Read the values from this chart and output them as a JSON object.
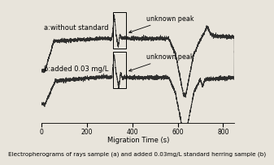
{
  "title": "",
  "xlabel": "Migration Time (s)",
  "ylabel": "",
  "caption": "Electropherograms of rays sample (a) and added 0.03mg/L standard herring sample (b)",
  "label_a": "a:without standard",
  "label_b": "b:added 0.03 mg/L",
  "annotation": "unknown peak",
  "xlim": [
    0,
    850
  ],
  "ylim": [
    -5.5,
    3.5
  ],
  "xticks": [
    0,
    200,
    400,
    600,
    800
  ],
  "bg_color": "#e8e4db",
  "line_color": "#1a1a1a",
  "figure_bg": "#e8e4db",
  "caption_fontsize": 5.2,
  "label_fontsize": 6.0,
  "annotation_fontsize": 5.8
}
